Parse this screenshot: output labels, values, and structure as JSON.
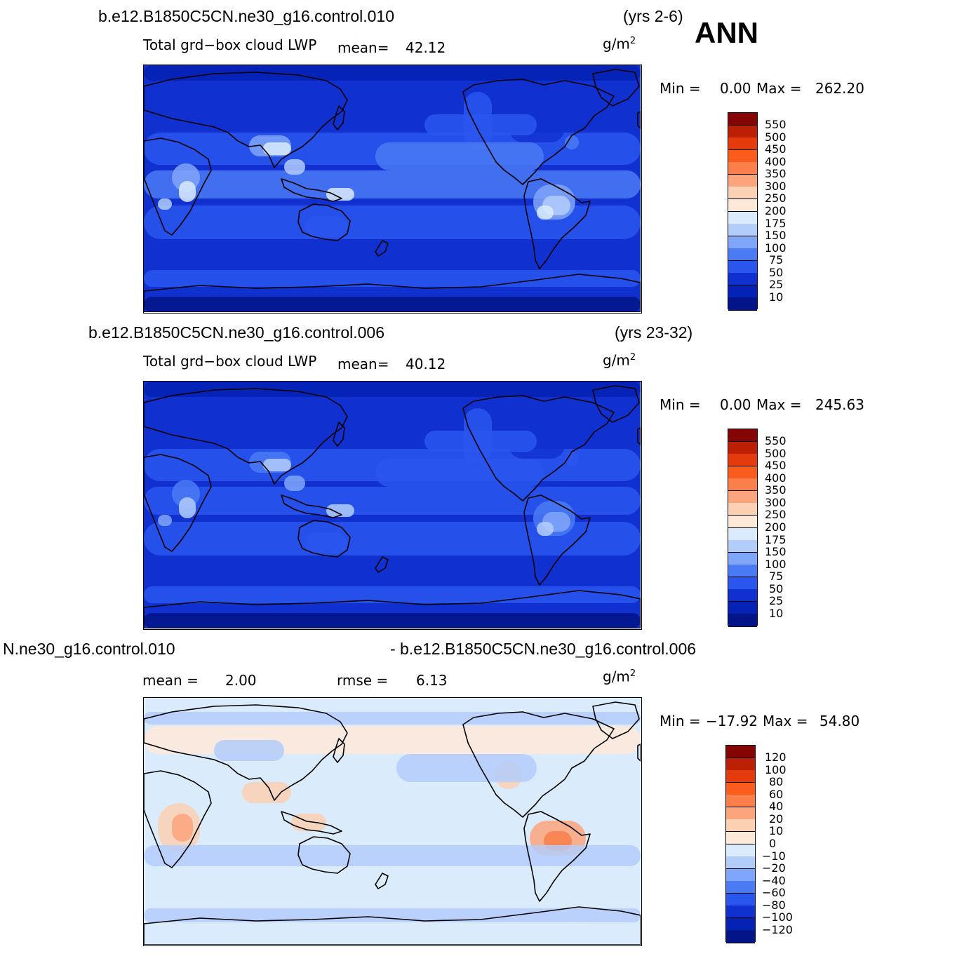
{
  "season": "ANN",
  "units": "g/m",
  "units_sup": "2",
  "panels": [
    {
      "case_title": "b.e12.B1850C5CN.ne30_g16.control.010",
      "years": "(yrs 2-6)",
      "field_label": "Total grd−box cloud LWP",
      "mean_label": "mean=",
      "mean_value": "42.12",
      "min_label": "Min  =",
      "min_value": "0.00",
      "max_label": "Max  =",
      "max_value": "262.20",
      "colorbar": {
        "labels": [
          "550",
          "500",
          "450",
          "400",
          "350",
          "300",
          "250",
          "200",
          "175",
          "150",
          "100",
          "75",
          "50",
          "25",
          "10"
        ],
        "colors": [
          "#850505",
          "#bb2004",
          "#e43a0c",
          "#f95c1c",
          "#fb7f4b",
          "#fca57d",
          "#fcd0b3",
          "#fee9d9",
          "#d9ebfc",
          "#b3cdfb",
          "#80a6f9",
          "#4b7af5",
          "#2a56ee",
          "#1031d0",
          "#0422b3",
          "#021487"
        ]
      },
      "map_palette": "abs"
    },
    {
      "case_title": "b.e12.B1850C5CN.ne30_g16.control.006",
      "years": "(yrs 23-32)",
      "field_label": "Total grd−box cloud LWP",
      "mean_label": "mean=",
      "mean_value": "40.12",
      "min_label": "Min  =",
      "min_value": "0.00",
      "max_label": "Max  =",
      "max_value": "245.63",
      "colorbar": {
        "labels": [
          "550",
          "500",
          "450",
          "400",
          "350",
          "300",
          "250",
          "200",
          "175",
          "150",
          "100",
          "75",
          "50",
          "25",
          "10"
        ],
        "colors": [
          "#850505",
          "#bb2004",
          "#e43a0c",
          "#f95c1c",
          "#fb7f4b",
          "#fca57d",
          "#fcd0b3",
          "#fee9d9",
          "#d9ebfc",
          "#b3cdfb",
          "#80a6f9",
          "#4b7af5",
          "#2a56ee",
          "#1031d0",
          "#0422b3",
          "#021487"
        ]
      },
      "map_palette": "abs"
    },
    {
      "case_title_left": "N.ne30_g16.control.010",
      "case_title_right": "- b.e12.B1850C5CN.ne30_g16.control.006",
      "mean_label": "mean  =",
      "mean_value": "2.00",
      "rmse_label": "rmse  =",
      "rmse_value": "6.13",
      "min_label": "Min  =",
      "min_value": "−17.92",
      "max_label": "Max  =",
      "max_value": "54.80",
      "colorbar": {
        "labels": [
          "120",
          "100",
          "80",
          "60",
          "40",
          "20",
          "10",
          "0",
          "−10",
          "−20",
          "−40",
          "−60",
          "−80",
          "−100",
          "−120"
        ],
        "colors": [
          "#850505",
          "#bb2004",
          "#e43a0c",
          "#f95c1c",
          "#fb7f4b",
          "#fca57d",
          "#fcd0b3",
          "#fee9d9",
          "#d9ebfc",
          "#b3cdfb",
          "#80a6f9",
          "#4b7af5",
          "#2a56ee",
          "#1031d0",
          "#0422b3",
          "#021487"
        ]
      },
      "map_palette": "diff"
    }
  ]
}
